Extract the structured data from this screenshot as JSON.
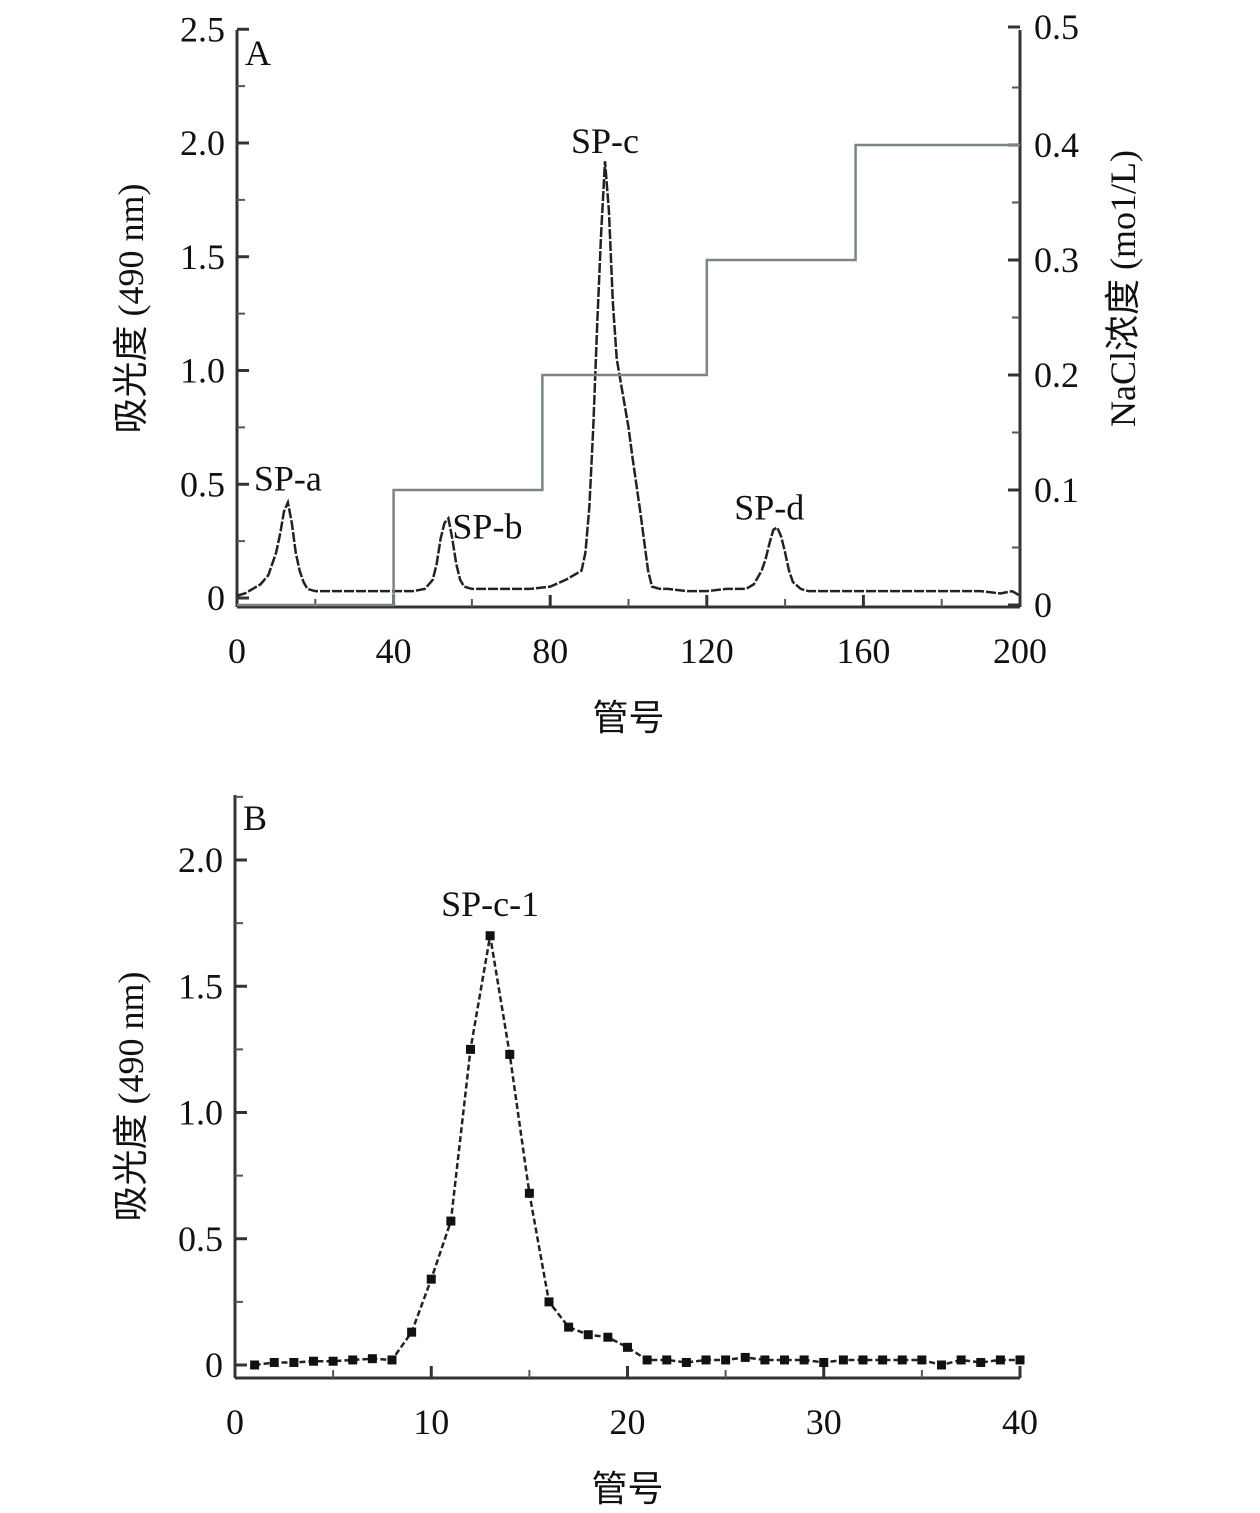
{
  "chart_data": [
    {
      "type": "line",
      "panel_label": "A",
      "xlabel": "管号",
      "ylabel": "吸光度 (490 nm)",
      "y2label": "NaCl浓度 (mo1/L)",
      "xlim": [
        0,
        200
      ],
      "ylim": [
        -0.04,
        2.5
      ],
      "y2lim": [
        0,
        0.5
      ],
      "xticks": [
        "0",
        "40",
        "80",
        "120",
        "160",
        "200"
      ],
      "yticks": [
        "0",
        "0.5",
        "1.0",
        "1.5",
        "2.0",
        "2.5"
      ],
      "y2ticks": [
        "0",
        "0.1",
        "0.2",
        "0.3",
        "0.4",
        "0.5"
      ],
      "grid": false,
      "annotations": [
        {
          "text": "SP-a",
          "x": 13,
          "y": 0.42
        },
        {
          "text": "SP-b",
          "x": 54,
          "y": 0.35
        },
        {
          "text": "SP-c",
          "x": 94,
          "y": 1.92
        },
        {
          "text": "SP-d",
          "x": 138,
          "y": 0.31
        }
      ],
      "series": [
        {
          "name": "吸光度",
          "axis": "left",
          "x": [
            0,
            2,
            4,
            6,
            8,
            10,
            11,
            12,
            13,
            14,
            15,
            16,
            17,
            18,
            20,
            25,
            30,
            35,
            40,
            45,
            48,
            50,
            51,
            52,
            53,
            54,
            55,
            56,
            57,
            58,
            60,
            65,
            70,
            75,
            80,
            84,
            86,
            88,
            89,
            90,
            91,
            92,
            93,
            94,
            95,
            96,
            97,
            98,
            99,
            100,
            101,
            102,
            103,
            104,
            105,
            106,
            108,
            110,
            115,
            120,
            125,
            130,
            132,
            134,
            135,
            136,
            137,
            138,
            139,
            140,
            141,
            142,
            144,
            146,
            150,
            160,
            170,
            180,
            190,
            195,
            198,
            200
          ],
          "y": [
            0.01,
            0.02,
            0.04,
            0.06,
            0.1,
            0.2,
            0.28,
            0.38,
            0.42,
            0.33,
            0.2,
            0.12,
            0.07,
            0.04,
            0.03,
            0.03,
            0.03,
            0.03,
            0.03,
            0.03,
            0.04,
            0.08,
            0.15,
            0.26,
            0.33,
            0.35,
            0.26,
            0.15,
            0.08,
            0.05,
            0.04,
            0.04,
            0.04,
            0.04,
            0.05,
            0.08,
            0.1,
            0.12,
            0.2,
            0.4,
            0.75,
            1.2,
            1.6,
            1.92,
            1.7,
            1.3,
            1.05,
            0.95,
            0.85,
            0.75,
            0.62,
            0.5,
            0.38,
            0.25,
            0.12,
            0.05,
            0.04,
            0.04,
            0.03,
            0.03,
            0.04,
            0.04,
            0.06,
            0.12,
            0.17,
            0.24,
            0.3,
            0.31,
            0.27,
            0.2,
            0.12,
            0.07,
            0.04,
            0.03,
            0.03,
            0.03,
            0.03,
            0.03,
            0.03,
            0.02,
            0.03,
            0.01
          ]
        },
        {
          "name": "NaCl浓度",
          "axis": "right",
          "type": "step",
          "x": [
            0,
            40,
            78,
            120,
            158,
            200
          ],
          "y": [
            0,
            0.1,
            0.2,
            0.3,
            0.4,
            0.4
          ]
        }
      ]
    },
    {
      "type": "line",
      "panel_label": "B",
      "xlabel": "管号",
      "ylabel": "吸光度 (490 nm)",
      "xlim": [
        0,
        40
      ],
      "ylim": [
        -0.05,
        2.25
      ],
      "xticks": [
        "0",
        "10",
        "20",
        "30",
        "40"
      ],
      "yticks": [
        "0",
        "0.5",
        "1.0",
        "1.5",
        "2.0"
      ],
      "grid": false,
      "annotations": [
        {
          "text": "SP-c-1",
          "x": 13,
          "y": 1.7
        }
      ],
      "series": [
        {
          "name": "SP-c-1",
          "marker": "square",
          "x": [
            1,
            2,
            3,
            4,
            5,
            6,
            7,
            8,
            9,
            10,
            11,
            12,
            13,
            14,
            15,
            16,
            17,
            18,
            19,
            20,
            21,
            22,
            23,
            24,
            25,
            26,
            27,
            28,
            29,
            30,
            31,
            32,
            33,
            34,
            35,
            36,
            37,
            38,
            39,
            40
          ],
          "y": [
            0.0,
            0.01,
            0.01,
            0.015,
            0.015,
            0.02,
            0.025,
            0.02,
            0.13,
            0.34,
            0.57,
            1.25,
            1.7,
            1.23,
            0.68,
            0.25,
            0.15,
            0.12,
            0.11,
            0.07,
            0.02,
            0.02,
            0.01,
            0.02,
            0.02,
            0.03,
            0.02,
            0.02,
            0.02,
            0.01,
            0.02,
            0.02,
            0.02,
            0.02,
            0.02,
            0.0,
            0.02,
            0.01,
            0.02,
            0.02
          ]
        }
      ]
    }
  ]
}
